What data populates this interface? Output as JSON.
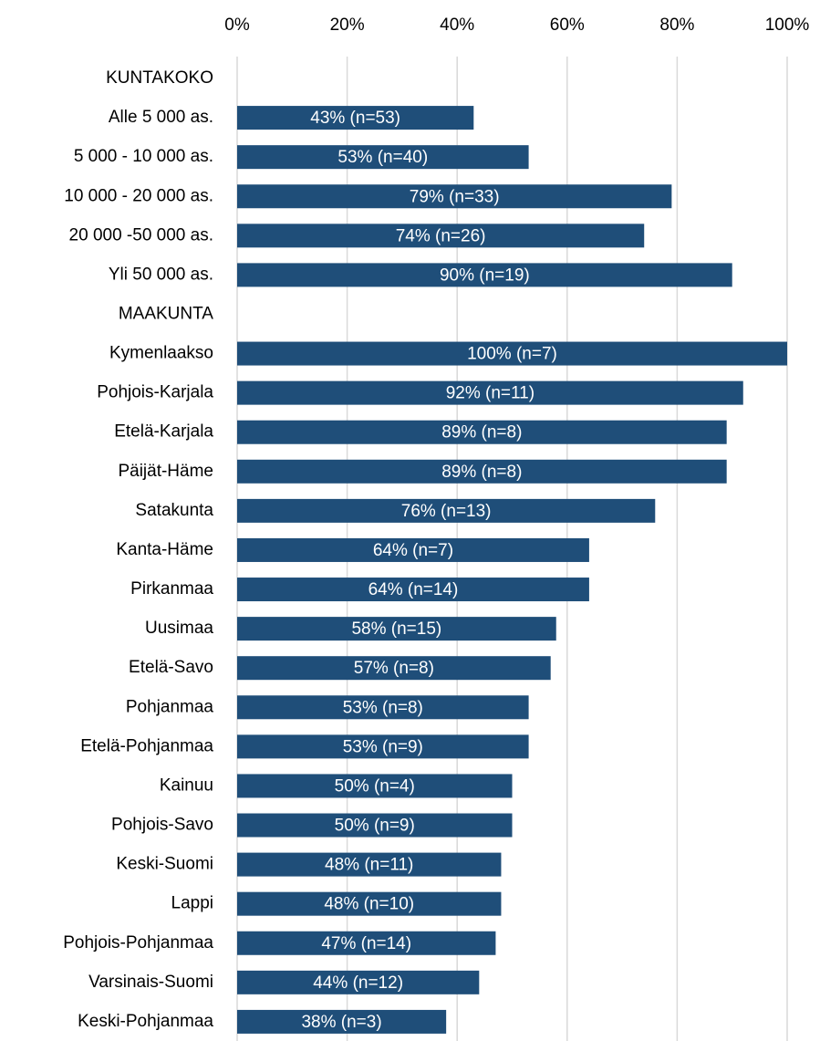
{
  "chart_data": {
    "type": "bar",
    "orientation": "horizontal",
    "categories": [
      "KUNTAKOKO",
      "Alle 5 000 as.",
      "5 000 - 10 000 as.",
      "10 000 - 20 000 as.",
      "20 000 -50 000 as.",
      "Yli 50 000 as.",
      "MAAKUNTA",
      "Kymenlaakso",
      "Pohjois-Karjala",
      "Etelä-Karjala",
      "Päijät-Häme",
      "Satakunta",
      "Kanta-Häme",
      "Pirkanmaa",
      "Uusimaa",
      "Etelä-Savo",
      "Pohjanmaa",
      "Etelä-Pohjanmaa",
      "Kainuu",
      "Pohjois-Savo",
      "Keski-Suomi",
      "Lappi",
      "Pohjois-Pohjanmaa",
      "Varsinais-Suomi",
      "Keski-Pohjanmaa"
    ],
    "values": [
      null,
      43,
      53,
      79,
      74,
      90,
      null,
      100,
      92,
      89,
      89,
      76,
      64,
      64,
      58,
      57,
      53,
      53,
      50,
      50,
      48,
      48,
      47,
      44,
      38
    ],
    "value_labels": [
      null,
      "43% (n=53)",
      "53% (n=40)",
      "79% (n=33)",
      "74% (n=26)",
      "90% (n=19)",
      null,
      "100% (n=7)",
      "92% (n=11)",
      "89% (n=8)",
      "89% (n=8)",
      "76% (n=13)",
      "64% (n=7)",
      "64% (n=14)",
      "58% (n=15)",
      "57% (n=8)",
      "53% (n=8)",
      "53% (n=9)",
      "50% (n=4)",
      "50% (n=9)",
      "48% (n=11)",
      "48% (n=10)",
      "47% (n=14)",
      "44% (n=12)",
      "38% (n=3)"
    ],
    "color": "#1f4e79",
    "xlim": [
      0,
      100
    ],
    "xticks": [
      {
        "value": 0,
        "label": "0%"
      },
      {
        "value": 20,
        "label": "20%"
      },
      {
        "value": 40,
        "label": "40%"
      },
      {
        "value": 60,
        "label": "60%"
      },
      {
        "value": 80,
        "label": "80%"
      },
      {
        "value": 100,
        "label": "100%"
      }
    ],
    "grid": true
  }
}
